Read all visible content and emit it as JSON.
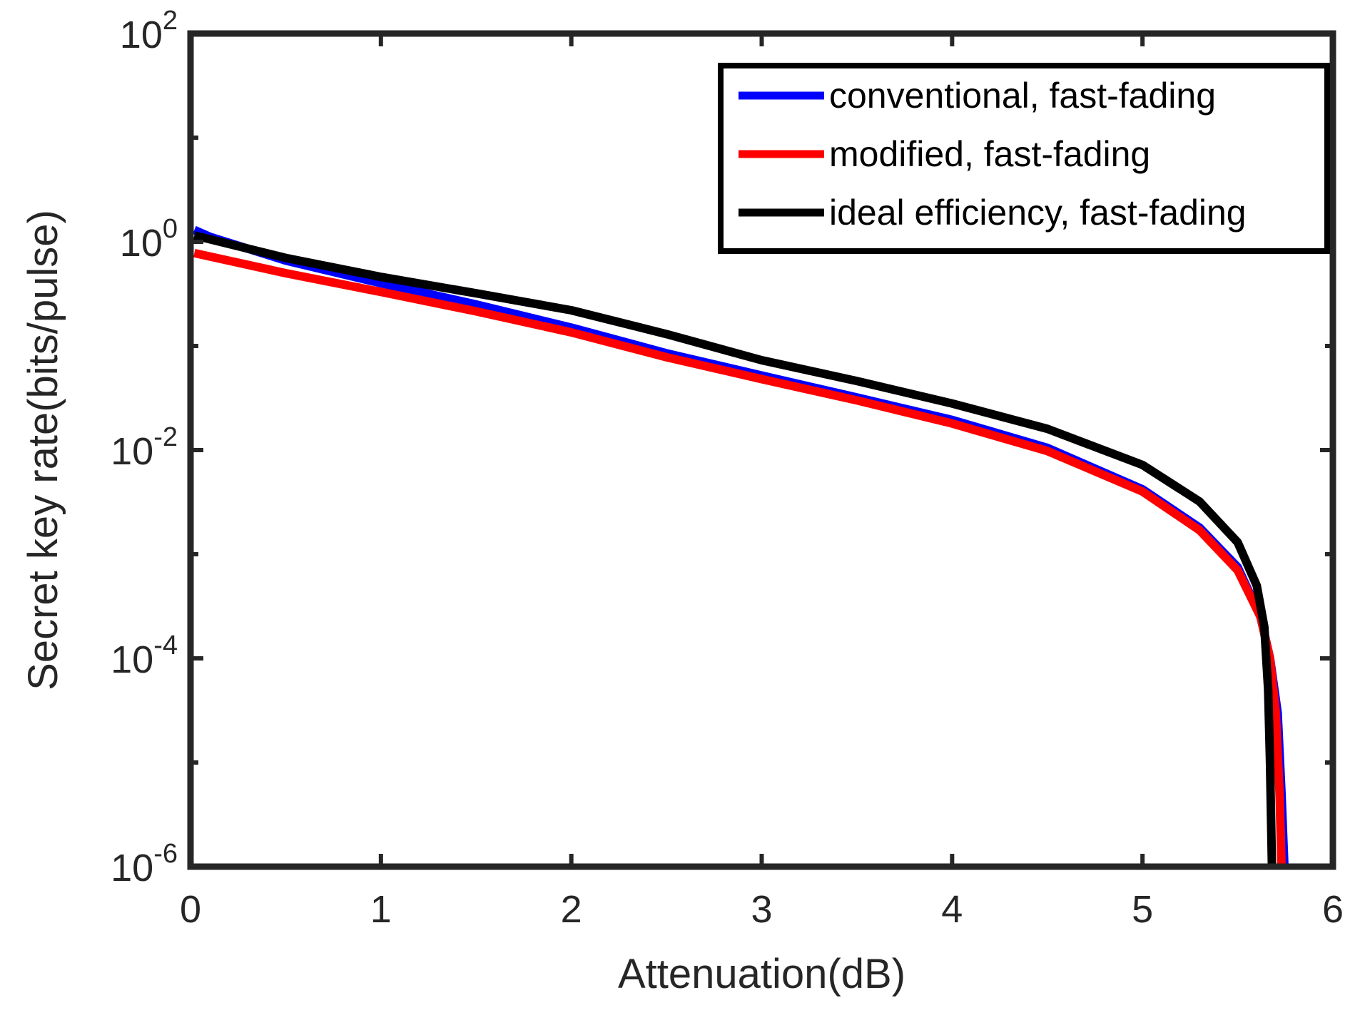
{
  "chart_data": {
    "type": "line",
    "title": "",
    "xlabel": "Attenuation(dB)",
    "ylabel": "Secret key rate(bits/pulse)",
    "xlim": [
      0,
      6
    ],
    "ylim": [
      1e-06,
      100
    ],
    "yscale": "log",
    "grid": false,
    "legend_position": "top-right",
    "x_ticks": [
      "0",
      "1",
      "2",
      "3",
      "4",
      "5",
      "6"
    ],
    "y_ticks": [
      {
        "base": "10",
        "exp": "2",
        "value": 100
      },
      {
        "base": "10",
        "exp": "0",
        "value": 1
      },
      {
        "base": "10",
        "exp": "-2",
        "value": 0.01
      },
      {
        "base": "10",
        "exp": "-4",
        "value": 0.0001
      },
      {
        "base": "10",
        "exp": "-6",
        "value": 1e-06
      }
    ],
    "series": [
      {
        "name": "conventional, fast-fading",
        "color": "#0000ff",
        "x": [
          0.02,
          0.1,
          0.5,
          1.0,
          1.5,
          2.0,
          2.5,
          3.0,
          3.5,
          4.0,
          4.5,
          5.0,
          5.3,
          5.5,
          5.62,
          5.67,
          5.71,
          5.73,
          5.745
        ],
        "y": [
          1.3,
          1.12,
          0.66,
          0.4,
          0.25,
          0.15,
          0.085,
          0.052,
          0.032,
          0.0195,
          0.0105,
          0.0042,
          0.0018,
          0.00075,
          0.00025,
          0.0001,
          3e-05,
          5e-06,
          1e-06
        ]
      },
      {
        "name": "modified, fast-fading",
        "color": "#ff0000",
        "x": [
          0.02,
          0.5,
          1.0,
          1.5,
          2.0,
          2.5,
          3.0,
          3.5,
          4.0,
          4.5,
          5.0,
          5.3,
          5.5,
          5.62,
          5.67,
          5.7,
          5.72,
          5.73
        ],
        "y": [
          0.78,
          0.5,
          0.33,
          0.215,
          0.135,
          0.078,
          0.048,
          0.03,
          0.018,
          0.0098,
          0.004,
          0.0017,
          0.0007,
          0.00025,
          0.0001,
          3e-05,
          5e-06,
          1e-06
        ]
      },
      {
        "name": "ideal efficiency, fast-fading",
        "color": "#000000",
        "x": [
          0.02,
          0.5,
          1.0,
          1.5,
          2.0,
          2.5,
          3.0,
          3.5,
          4.0,
          4.5,
          5.0,
          5.3,
          5.5,
          5.6,
          5.64,
          5.66,
          5.67,
          5.68
        ],
        "y": [
          1.15,
          0.7,
          0.46,
          0.32,
          0.22,
          0.13,
          0.073,
          0.046,
          0.028,
          0.016,
          0.0072,
          0.0032,
          0.0013,
          0.0005,
          0.0002,
          5e-05,
          1e-05,
          1e-06
        ]
      }
    ]
  }
}
